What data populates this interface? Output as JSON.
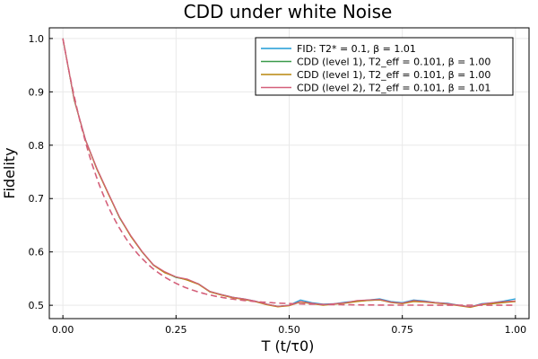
{
  "chart_data": {
    "type": "line",
    "title": "CDD under white Noise",
    "xlabel": "T (t/τ0)",
    "ylabel": "Fidelity",
    "xlim": [
      -0.03,
      1.03
    ],
    "ylim": [
      0.475,
      1.02
    ],
    "xticks": [
      0.0,
      0.25,
      0.5,
      0.75,
      1.0
    ],
    "xtick_labels": [
      "0.00",
      "0.25",
      "0.50",
      "0.75",
      "1.00"
    ],
    "yticks": [
      0.5,
      0.6,
      0.7,
      0.8,
      0.9,
      1.0
    ],
    "ytick_labels": [
      "0.5",
      "0.6",
      "0.7",
      "0.8",
      "0.9",
      "1.0"
    ],
    "grid": true,
    "legend_position": "top-right",
    "x": [
      0.0,
      0.025,
      0.05,
      0.075,
      0.1,
      0.125,
      0.15,
      0.175,
      0.2,
      0.225,
      0.25,
      0.275,
      0.3,
      0.325,
      0.35,
      0.375,
      0.4,
      0.425,
      0.45,
      0.475,
      0.5,
      0.525,
      0.55,
      0.575,
      0.6,
      0.625,
      0.65,
      0.675,
      0.7,
      0.725,
      0.75,
      0.775,
      0.8,
      0.825,
      0.85,
      0.875,
      0.9,
      0.925,
      0.95,
      0.975,
      1.0
    ],
    "series": [
      {
        "name": "FID: T2* = 0.1, β = 1.01",
        "color": "#1f9bd6",
        "values": [
          1.0,
          0.885,
          0.81,
          0.755,
          0.71,
          0.665,
          0.63,
          0.6,
          0.575,
          0.562,
          0.553,
          0.548,
          0.54,
          0.525,
          0.52,
          0.515,
          0.512,
          0.508,
          0.502,
          0.498,
          0.5,
          0.51,
          0.505,
          0.502,
          0.503,
          0.506,
          0.508,
          0.51,
          0.512,
          0.507,
          0.505,
          0.51,
          0.508,
          0.505,
          0.504,
          0.5,
          0.497,
          0.503,
          0.505,
          0.508,
          0.512
        ]
      },
      {
        "name": "CDD (level 1), T2_eff = 0.101, β = 1.00",
        "color": "#3a9a4a",
        "values": [
          1.0,
          0.884,
          0.81,
          0.756,
          0.71,
          0.664,
          0.63,
          0.6,
          0.576,
          0.562,
          0.552,
          0.548,
          0.54,
          0.526,
          0.52,
          0.515,
          0.511,
          0.507,
          0.502,
          0.498,
          0.5,
          0.507,
          0.504,
          0.501,
          0.502,
          0.505,
          0.508,
          0.509,
          0.51,
          0.506,
          0.504,
          0.508,
          0.507,
          0.505,
          0.503,
          0.5,
          0.497,
          0.502,
          0.504,
          0.506,
          0.508
        ]
      },
      {
        "name": "CDD (level 1), T2_eff = 0.101, β = 1.00",
        "color": "#b8860b",
        "values": [
          1.0,
          0.885,
          0.809,
          0.755,
          0.709,
          0.665,
          0.629,
          0.6,
          0.575,
          0.561,
          0.553,
          0.547,
          0.539,
          0.525,
          0.519,
          0.514,
          0.511,
          0.507,
          0.501,
          0.497,
          0.499,
          0.506,
          0.503,
          0.5,
          0.502,
          0.504,
          0.507,
          0.509,
          0.51,
          0.505,
          0.503,
          0.507,
          0.506,
          0.504,
          0.502,
          0.499,
          0.496,
          0.501,
          0.503,
          0.505,
          0.507
        ]
      },
      {
        "name": "CDD (level 2), T2_eff = 0.101, β = 1.01",
        "color": "#d4607a",
        "values": [
          1.0,
          0.886,
          0.81,
          0.757,
          0.711,
          0.666,
          0.631,
          0.601,
          0.576,
          0.563,
          0.553,
          0.549,
          0.54,
          0.526,
          0.52,
          0.515,
          0.512,
          0.508,
          0.502,
          0.498,
          0.5,
          0.507,
          0.504,
          0.501,
          0.503,
          0.505,
          0.509,
          0.51,
          0.511,
          0.506,
          0.504,
          0.509,
          0.507,
          0.505,
          0.503,
          0.5,
          0.497,
          0.502,
          0.505,
          0.507,
          0.508
        ]
      }
    ],
    "fit_curve": {
      "style": "dashed",
      "color": "#d4607a",
      "asymptote": 0.5,
      "amplitude": 0.5,
      "tau": 0.101,
      "beta": 1.01
    }
  }
}
